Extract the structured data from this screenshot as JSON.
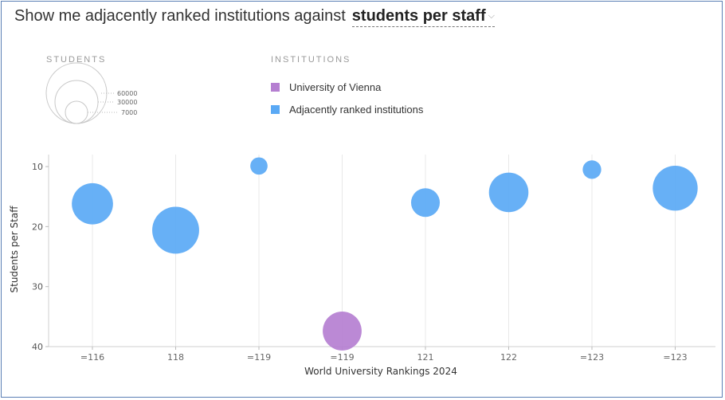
{
  "header": {
    "prefix": "Show me adjacently ranked institutions against",
    "selector_label": "students per staff",
    "caret": "⌵"
  },
  "legend": {
    "students_title": "STUDENTS",
    "size_values": [
      "60000",
      "30000",
      "7000"
    ],
    "institutions_title": "INSTITUTIONS",
    "items": [
      {
        "label": "University of Vienna",
        "color": "#b57fd1"
      },
      {
        "label": "Adjacently ranked institutions",
        "color": "#5aa9f5"
      }
    ]
  },
  "chart_data": {
    "type": "scatter",
    "xlabel": "World University Rankings 2024",
    "ylabel": "Students per Staff",
    "ylim": [
      8,
      40
    ],
    "y_inverted": true,
    "yticks": [
      10,
      20,
      30,
      40
    ],
    "categories": [
      "=116",
      "118",
      "=119",
      "=119",
      "121",
      "122",
      "=123",
      "=123"
    ],
    "series": [
      {
        "points": [
          {
            "category": 0,
            "y": 16.2,
            "students": 37000
          },
          {
            "category": 1,
            "y": 20.6,
            "students": 48000
          },
          {
            "category": 2,
            "y": 9.9,
            "students": 6500
          },
          {
            "category": 4,
            "y": 16.0,
            "students": 18000
          },
          {
            "category": 5,
            "y": 14.3,
            "students": 34000
          },
          {
            "category": 6,
            "y": 10.5,
            "students": 7500
          },
          {
            "category": 7,
            "y": 13.6,
            "students": 44000
          }
        ]
      },
      {
        "points": [
          {
            "category": 3,
            "y": 37.4,
            "students": 33000
          }
        ]
      }
    ],
    "colors": [
      "#5aa9f5",
      "#b57fd1"
    ],
    "grid": true
  }
}
